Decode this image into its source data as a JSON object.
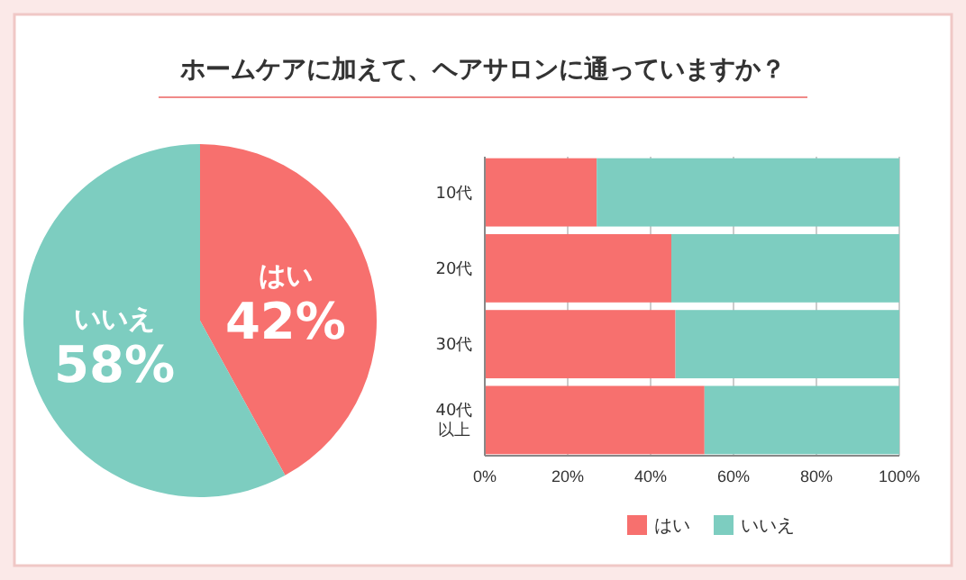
{
  "chart_data": [
    {
      "type": "pie",
      "title": "ホームケアに加えて、ヘアサロンに通っていますか？",
      "categories": [
        "はい",
        "いいえ"
      ],
      "values": [
        42,
        58
      ],
      "colors": [
        "#f7706e",
        "#7dcdc0"
      ],
      "value_labels": [
        "42%",
        "58%"
      ]
    },
    {
      "type": "bar",
      "orientation": "horizontal",
      "stacked": true,
      "categories": [
        "10代",
        "20代",
        "30代",
        "40代以上"
      ],
      "series": [
        {
          "name": "はい",
          "color": "#f7706e",
          "values": [
            27,
            45,
            46,
            53
          ]
        },
        {
          "name": "いいえ",
          "color": "#7dcdc0",
          "values": [
            73,
            55,
            54,
            47
          ]
        }
      ],
      "xlim": [
        0,
        100
      ],
      "xticks": [
        {
          "value": 0,
          "label": "0%"
        },
        {
          "value": 20,
          "label": "20%"
        },
        {
          "value": 40,
          "label": "40%"
        },
        {
          "value": 60,
          "label": "60%"
        },
        {
          "value": 80,
          "label": "80%"
        },
        {
          "value": 100,
          "label": "100%"
        }
      ],
      "grid": "x",
      "legend": "bottom"
    }
  ]
}
